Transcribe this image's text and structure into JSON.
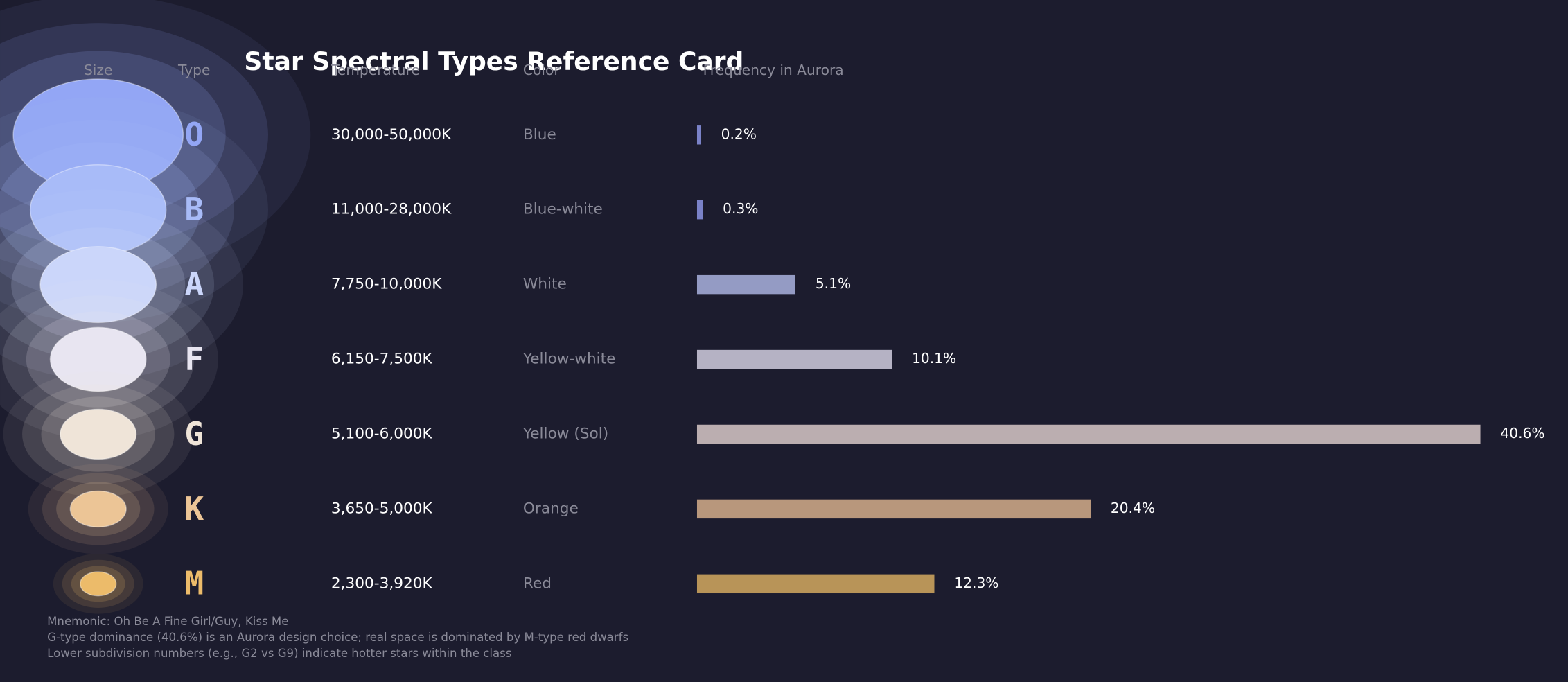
{
  "header": {
    "title": "Star Spectral Types Reference Card"
  },
  "columns": [
    "Size",
    "Type",
    "Temperature",
    "Color",
    "Frequency in Aurora"
  ],
  "rows": [
    {
      "type": "O",
      "temperature": "30,000-50,000K",
      "color": "Blue",
      "frequency": 0.2,
      "frequency_label": "0.2%",
      "star_color": "#93a6f5",
      "bar_color": "#7a82c8"
    },
    {
      "type": "B",
      "temperature": "11,000-28,000K",
      "color": "Blue-white",
      "frequency": 0.3,
      "frequency_label": "0.3%",
      "star_color": "#a8bbf8",
      "bar_color": "#7a82c8"
    },
    {
      "type": "A",
      "temperature": "7,750-10,000K",
      "color": "White",
      "frequency": 5.1,
      "frequency_label": "5.1%",
      "star_color": "#cbd6fa",
      "bar_color": "#949bc4"
    },
    {
      "type": "F",
      "temperature": "6,150-7,500K",
      "color": "Yellow-white",
      "frequency": 10.1,
      "frequency_label": "10.1%",
      "star_color": "#e8e5f1",
      "bar_color": "#b5b2c4"
    },
    {
      "type": "G",
      "temperature": "5,100-6,000K",
      "color": "Yellow (Sol)",
      "frequency": 40.6,
      "frequency_label": "40.6%",
      "star_color": "#efe4d8",
      "bar_color": "#bbaeb0"
    },
    {
      "type": "K",
      "temperature": "3,650-5,000K",
      "color": "Orange",
      "frequency": 20.4,
      "frequency_label": "20.4%",
      "star_color": "#ecc596",
      "bar_color": "#b8977c"
    },
    {
      "type": "M",
      "temperature": "2,300-3,920K",
      "color": "Red",
      "frequency": 12.3,
      "frequency_label": "12.3%",
      "star_color": "#ecbb6a",
      "bar_color": "#b89458"
    }
  ],
  "notes": [
    "Mnemonic: Oh Be A Fine Girl/Guy, Kiss Me",
    "G-type dominance (40.6%) is an Aurora design choice; real space is dominated by M-type red dwarfs",
    "Lower subdivision numbers (e.g., G2 vs G9) indicate hotter stars within the class"
  ]
}
